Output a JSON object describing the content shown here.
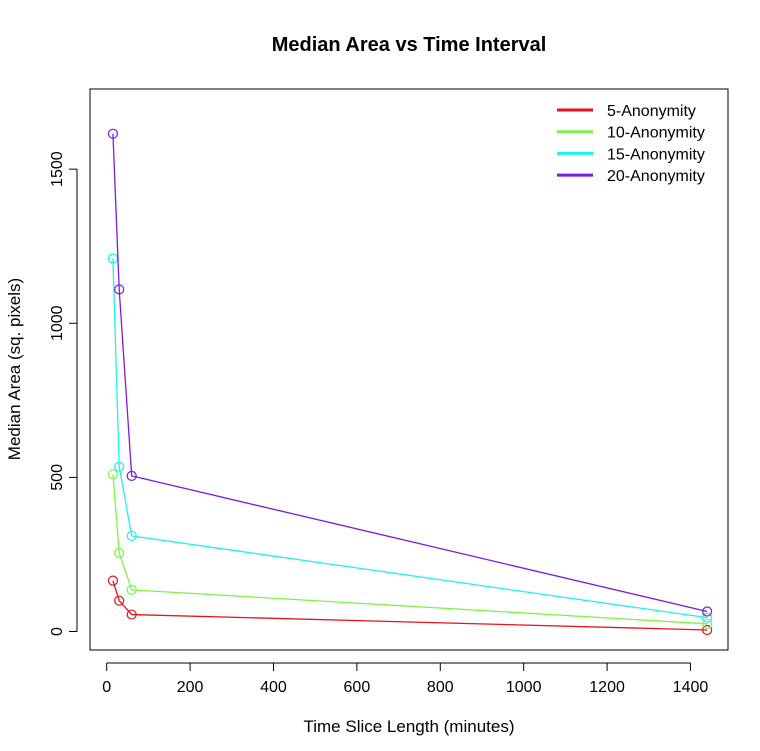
{
  "chart_data": {
    "type": "line",
    "title": "Median Area vs Time Interval",
    "xlabel": "Time Slice Length (minutes)",
    "ylabel": "Median Area (sq. pixels)",
    "xlim": [
      -40,
      1490
    ],
    "ylim": [
      -60,
      1760
    ],
    "xticks": [
      0,
      200,
      400,
      600,
      800,
      1000,
      1200,
      1400
    ],
    "yticks": [
      0,
      500,
      1000,
      1500
    ],
    "legend_position": "top-right",
    "grid": false,
    "x": [
      15,
      30,
      60,
      1440
    ],
    "series": [
      {
        "name": "5-Anonymity",
        "color": "#e8111f",
        "values": [
          165,
          100,
          55,
          5
        ]
      },
      {
        "name": "10-Anonymity",
        "color": "#7cf44a",
        "values": [
          510,
          255,
          135,
          25
        ]
      },
      {
        "name": "15-Anonymity",
        "color": "#1ef2f0",
        "values": [
          1210,
          535,
          310,
          45
        ]
      },
      {
        "name": "20-Anonymity",
        "color": "#7b1be0",
        "values": [
          1615,
          1110,
          505,
          65
        ]
      }
    ]
  }
}
